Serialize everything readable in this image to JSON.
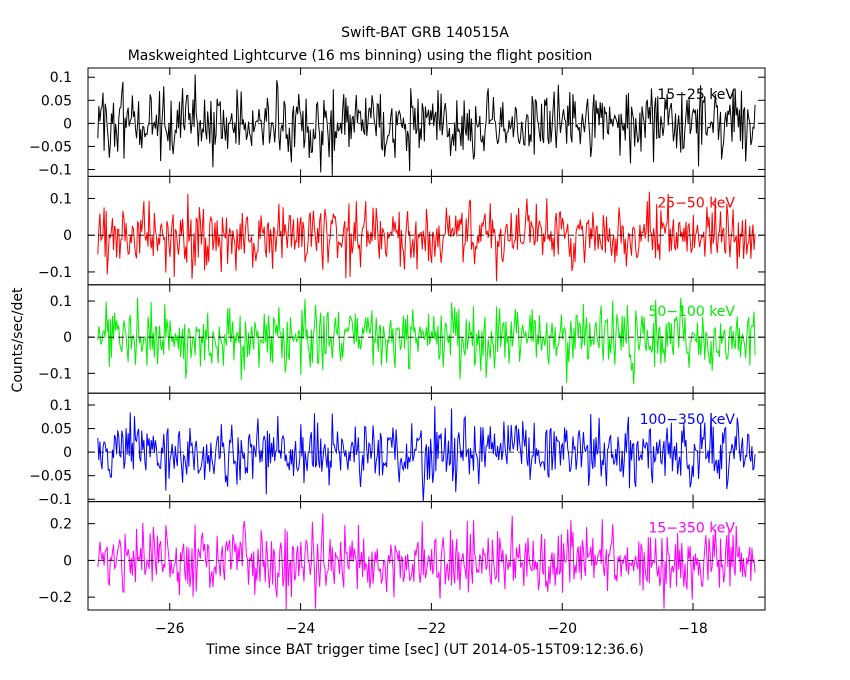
{
  "chart_data": {
    "type": "line",
    "title": "Swift-BAT GRB 140515A",
    "subtitle": "Maskweighted Lightcurve (16 ms binning) using the flight position",
    "xlabel": "Time since BAT trigger time [sec] (UT 2014-05-15T09:12:36.6)",
    "ylabel": "Counts/sec/det",
    "xlim": [
      -27.25,
      -16.9
    ],
    "x_ticks": [
      -26,
      -24,
      -22,
      -20,
      -18
    ],
    "x_tick_labels": [
      "−26",
      "−24",
      "−22",
      "−20",
      "−18"
    ],
    "x_start": -27.1,
    "x_end": -17.05,
    "bin_size": 0.016,
    "panels": [
      {
        "band": "15−25 keV",
        "color": "#000000",
        "ylim": [
          -0.115,
          0.12
        ],
        "y_ticks": [
          0.1,
          0.05,
          0,
          -0.05,
          -0.1
        ],
        "y_tick_labels": [
          "0.1",
          "0.05",
          "0",
          "−0.05",
          "−0.1"
        ],
        "noise_sigma": 0.038,
        "y_min": -0.115,
        "y_max": 0.12
      },
      {
        "band": "25−50 keV",
        "color": "#ff0000",
        "ylim": [
          -0.135,
          0.16
        ],
        "y_ticks": [
          0.1,
          0,
          -0.1
        ],
        "y_tick_labels": [
          "0.1",
          "0",
          "−0.1"
        ],
        "noise_sigma": 0.045,
        "y_min": -0.125,
        "y_max": 0.16
      },
      {
        "band": "50−100 keV",
        "color": "#00ee00",
        "ylim": [
          -0.155,
          0.145
        ],
        "y_ticks": [
          0.1,
          0,
          -0.1
        ],
        "y_tick_labels": [
          "0.1",
          "0",
          "−0.1"
        ],
        "noise_sigma": 0.045,
        "y_min": -0.13,
        "y_max": 0.14
      },
      {
        "band": "100−350 keV",
        "color": "#0000ff",
        "ylim": [
          -0.105,
          0.125
        ],
        "y_ticks": [
          0.1,
          0.05,
          0,
          -0.05,
          -0.1
        ],
        "y_tick_labels": [
          "0.1",
          "0.05",
          "0",
          "−0.05",
          "−0.1"
        ],
        "noise_sigma": 0.035,
        "y_min": -0.105,
        "y_max": 0.125
      },
      {
        "band": "15−350 keV",
        "color": "#ff00ff",
        "ylim": [
          -0.27,
          0.32
        ],
        "y_ticks": [
          0.2,
          0,
          -0.2
        ],
        "y_tick_labels": [
          "0.2",
          "0",
          "−0.2"
        ],
        "noise_sigma": 0.085,
        "y_min": -0.27,
        "y_max": 0.31
      }
    ]
  }
}
